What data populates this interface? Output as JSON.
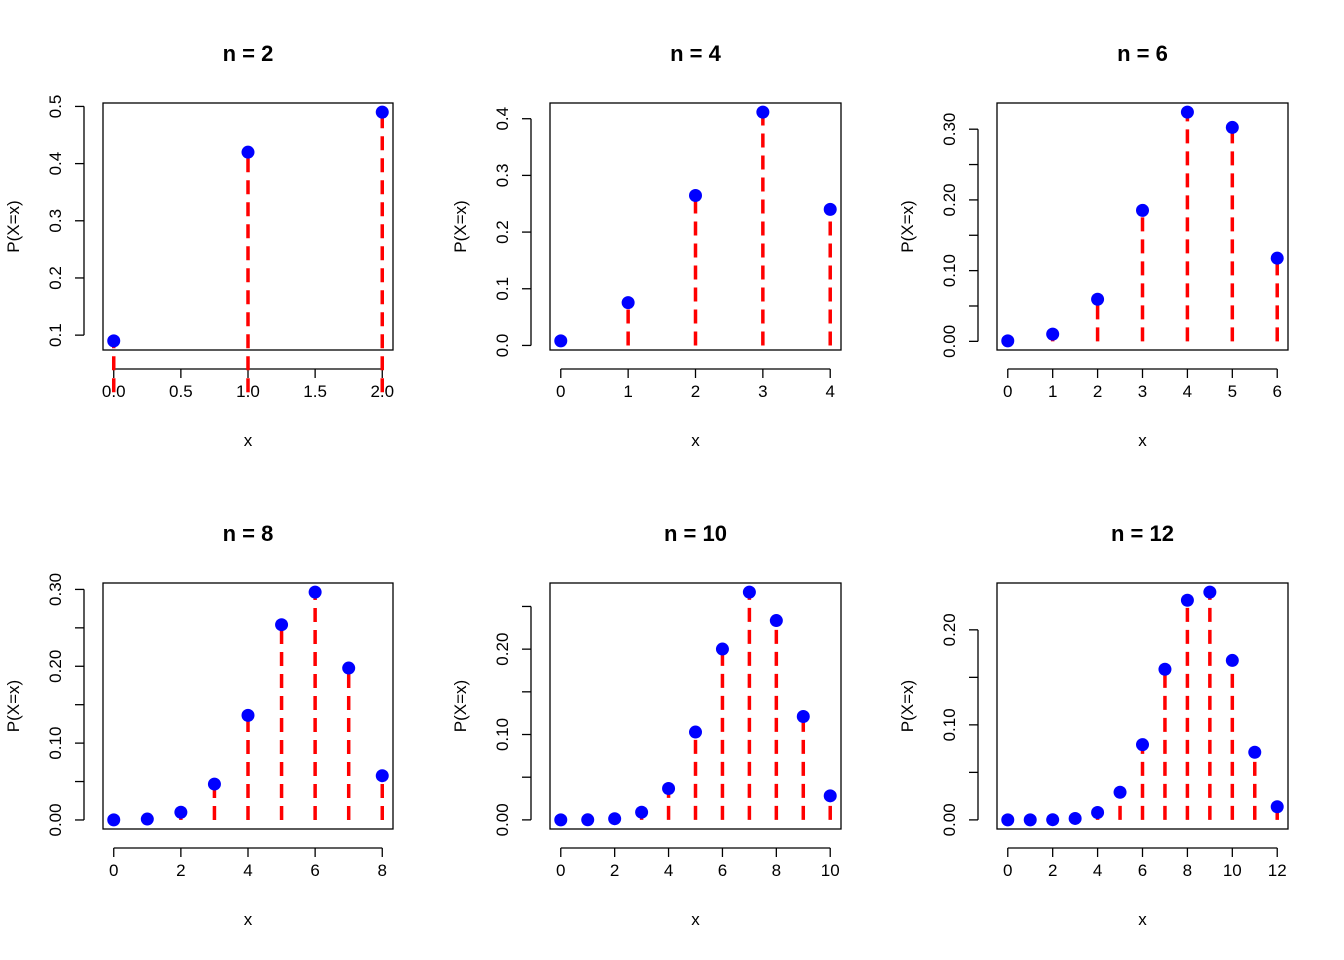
{
  "colors": {
    "stem": "#ff0000",
    "point": "#0000ff",
    "axis": "#000000"
  },
  "chart_data": [
    {
      "type": "scatter",
      "title": "n =  2",
      "xlabel": "x",
      "ylabel": "P(X=x)",
      "xlim": [
        0,
        2
      ],
      "ylim": [
        0.09,
        0.49
      ],
      "x_ticks": [
        0.0,
        0.5,
        1.0,
        1.5,
        2.0
      ],
      "x_tick_labels": [
        "0.0",
        "0.5",
        "1.0",
        "1.5",
        "2.0"
      ],
      "y_ticks": [
        0.1,
        0.2,
        0.3,
        0.4,
        0.5
      ],
      "y_tick_labels": [
        "0.1",
        "0.2",
        "0.3",
        "0.4",
        "0.5"
      ],
      "x": [
        0,
        1,
        2
      ],
      "values": [
        0.09,
        0.42,
        0.49
      ]
    },
    {
      "type": "scatter",
      "title": "n =  4",
      "xlabel": "x",
      "ylabel": "P(X=x)",
      "xlim": [
        0,
        4
      ],
      "ylim": [
        0.0081,
        0.4116
      ],
      "x_ticks": [
        0,
        1,
        2,
        3,
        4
      ],
      "x_tick_labels": [
        "0",
        "1",
        "2",
        "3",
        "4"
      ],
      "y_ticks": [
        0.0,
        0.1,
        0.2,
        0.3,
        0.4
      ],
      "y_tick_labels": [
        "0.0",
        "0.1",
        "0.2",
        "0.3",
        "0.4"
      ],
      "x": [
        0,
        1,
        2,
        3,
        4
      ],
      "values": [
        0.0081,
        0.0756,
        0.2646,
        0.4116,
        0.2401
      ]
    },
    {
      "type": "scatter",
      "title": "n =  6",
      "xlabel": "x",
      "ylabel": "P(X=x)",
      "xlim": [
        0,
        6
      ],
      "ylim": [
        0.0007,
        0.3241
      ],
      "x_ticks": [
        0,
        1,
        2,
        3,
        4,
        5,
        6
      ],
      "x_tick_labels": [
        "0",
        "1",
        "2",
        "3",
        "4",
        "5",
        "6"
      ],
      "y_ticks": [
        0.0,
        0.05,
        0.1,
        0.15,
        0.2,
        0.25,
        0.3
      ],
      "y_tick_labels": [
        "0.00",
        "",
        "0.10",
        "",
        "0.20",
        "",
        "0.30"
      ],
      "x": [
        0,
        1,
        2,
        3,
        4,
        5,
        6
      ],
      "values": [
        0.0007,
        0.0102,
        0.0595,
        0.1852,
        0.3241,
        0.3025,
        0.1176
      ]
    },
    {
      "type": "scatter",
      "title": "n =  8",
      "xlabel": "x",
      "ylabel": "P(X=x)",
      "xlim": [
        0,
        8
      ],
      "ylim": [
        0.0001,
        0.2965
      ],
      "x_ticks": [
        0,
        2,
        4,
        6,
        8
      ],
      "x_tick_labels": [
        "0",
        "2",
        "4",
        "6",
        "8"
      ],
      "y_ticks": [
        0.0,
        0.05,
        0.1,
        0.15,
        0.2,
        0.25,
        0.3
      ],
      "y_tick_labels": [
        "0.00",
        "",
        "0.10",
        "",
        "0.20",
        "",
        "0.30"
      ],
      "x": [
        0,
        1,
        2,
        3,
        4,
        5,
        6,
        7,
        8
      ],
      "values": [
        0.0001,
        0.0012,
        0.01,
        0.0467,
        0.1361,
        0.2541,
        0.2965,
        0.1977,
        0.0576
      ]
    },
    {
      "type": "scatter",
      "title": "n =  10",
      "xlabel": "x",
      "ylabel": "P(X=x)",
      "xlim": [
        0,
        10
      ],
      "ylim": [
        0.0,
        0.2668
      ],
      "x_ticks": [
        0,
        2,
        4,
        6,
        8,
        10
      ],
      "x_tick_labels": [
        "0",
        "2",
        "4",
        "6",
        "8",
        "10"
      ],
      "y_ticks": [
        0.0,
        0.05,
        0.1,
        0.15,
        0.2,
        0.25
      ],
      "y_tick_labels": [
        "0.00",
        "",
        "0.10",
        "",
        "0.20",
        ""
      ],
      "x": [
        0,
        1,
        2,
        3,
        4,
        5,
        6,
        7,
        8,
        9,
        10
      ],
      "values": [
        0.0,
        0.0001,
        0.0014,
        0.009,
        0.0368,
        0.1029,
        0.2001,
        0.2668,
        0.2335,
        0.1211,
        0.0282
      ]
    },
    {
      "type": "scatter",
      "title": "n =  12",
      "xlabel": "x",
      "ylabel": "P(X=x)",
      "xlim": [
        0,
        12
      ],
      "ylim": [
        0.0,
        0.2397
      ],
      "x_ticks": [
        0,
        2,
        4,
        6,
        8,
        10,
        12
      ],
      "x_tick_labels": [
        "0",
        "2",
        "4",
        "6",
        "8",
        "10",
        "12"
      ],
      "y_ticks": [
        0.0,
        0.05,
        0.1,
        0.15,
        0.2
      ],
      "y_tick_labels": [
        "0.00",
        "",
        "0.10",
        "",
        "0.20"
      ],
      "x": [
        0,
        1,
        2,
        3,
        4,
        5,
        6,
        7,
        8,
        9,
        10,
        11,
        12
      ],
      "values": [
        0.0,
        0.0,
        0.0002,
        0.0015,
        0.0078,
        0.0291,
        0.0792,
        0.1585,
        0.2311,
        0.2397,
        0.1678,
        0.0712,
        0.0138
      ]
    }
  ]
}
